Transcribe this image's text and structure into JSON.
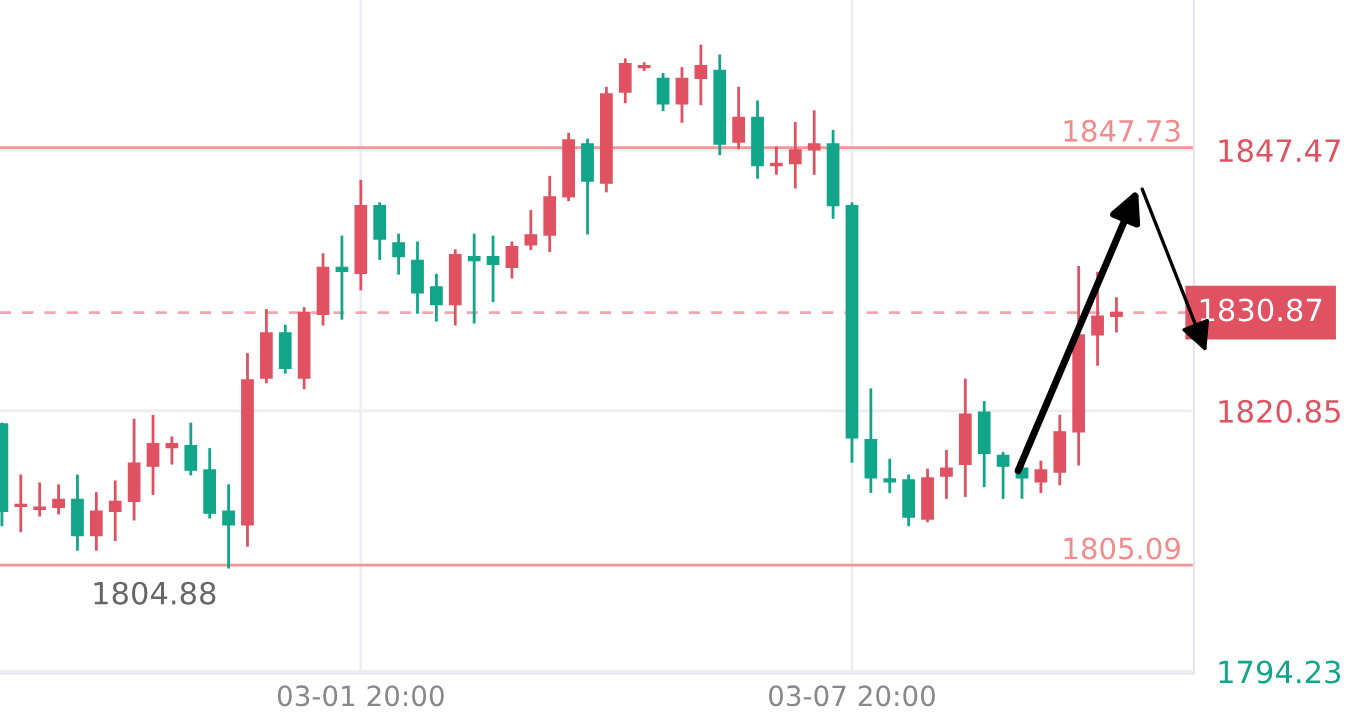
{
  "chart_data": {
    "type": "candlestick",
    "categories": [
      null,
      null,
      null,
      null,
      null,
      null,
      null,
      null,
      null,
      null,
      null,
      null,
      null,
      null,
      null,
      null,
      null,
      null,
      null,
      "03-01 20:00",
      null,
      null,
      null,
      null,
      null,
      null,
      null,
      null,
      null,
      null,
      null,
      null,
      null,
      null,
      null,
      null,
      null,
      null,
      null,
      null,
      null,
      null,
      null,
      null,
      null,
      "03-07 20:00",
      null,
      null,
      null,
      null,
      null,
      null,
      null,
      null,
      null,
      null,
      null,
      null,
      null,
      null
    ],
    "ohlc": [
      [
        1819.5,
        1819.5,
        1809.2,
        1810.6
      ],
      [
        1811.1,
        1814.2,
        1808.6,
        1811.3
      ],
      [
        1810.8,
        1813.4,
        1810.2,
        1811.0
      ],
      [
        1811.0,
        1813.2,
        1810.4,
        1811.8
      ],
      [
        1811.8,
        1814.2,
        1806.7,
        1808.1
      ],
      [
        1808.1,
        1812.4,
        1806.7,
        1810.6
      ],
      [
        1810.6,
        1813.6,
        1807.7,
        1811.6
      ],
      [
        1811.6,
        1819.9,
        1809.8,
        1815.5
      ],
      [
        1815.2,
        1820.3,
        1812.4,
        1817.5
      ],
      [
        1817.1,
        1818.1,
        1815.5,
        1817.5
      ],
      [
        1817.3,
        1819.5,
        1814.4,
        1814.8
      ],
      [
        1814.8,
        1816.9,
        1810.0,
        1810.4
      ],
      [
        1810.6,
        1813.2,
        1804.88,
        1809.2
      ],
      [
        1809.2,
        1826.6,
        1807.1,
        1824.0
      ],
      [
        1824.2,
        1831.1,
        1823.8,
        1828.8
      ],
      [
        1828.8,
        1829.5,
        1824.8,
        1825.2
      ],
      [
        1824.2,
        1831.3,
        1823.2,
        1830.9
      ],
      [
        1830.7,
        1836.8,
        1829.7,
        1835.5
      ],
      [
        1835.5,
        1838.6,
        1830.3,
        1835.1
      ],
      [
        1834.9,
        1844.3,
        1833.3,
        1841.8
      ],
      [
        1841.8,
        1842.0,
        1836.4,
        1838.4
      ],
      [
        1838.0,
        1838.8,
        1834.9,
        1836.6
      ],
      [
        1836.2,
        1838.0,
        1830.9,
        1832.9
      ],
      [
        1833.5,
        1834.7,
        1830.1,
        1831.7
      ],
      [
        1831.7,
        1837.2,
        1829.7,
        1836.8
      ],
      [
        1836.6,
        1838.8,
        1829.9,
        1836.2
      ],
      [
        1836.6,
        1838.6,
        1832.1,
        1835.8
      ],
      [
        1835.5,
        1838.0,
        1834.5,
        1837.6
      ],
      [
        1837.8,
        1841.2,
        1837.4,
        1838.8
      ],
      [
        1838.8,
        1844.7,
        1837.2,
        1842.7
      ],
      [
        1842.7,
        1849.1,
        1842.4,
        1848.5
      ],
      [
        1848.1,
        1848.5,
        1839.0,
        1844.3
      ],
      [
        1844.1,
        1853.8,
        1843.3,
        1853.2
      ],
      [
        1853.4,
        1856.7,
        1852.4,
        1856.3
      ],
      [
        1855.9,
        1856.3,
        1855.7,
        1856.1
      ],
      [
        1854.8,
        1855.2,
        1851.6,
        1852.2
      ],
      [
        1852.2,
        1855.8,
        1850.4,
        1854.8
      ],
      [
        1854.8,
        1858.1,
        1852.2,
        1856.1
      ],
      [
        1855.6,
        1857.1,
        1847.1,
        1848.1
      ],
      [
        1848.3,
        1853.8,
        1847.7,
        1850.8
      ],
      [
        1850.8,
        1852.4,
        1844.7,
        1845.9
      ],
      [
        1845.9,
        1847.7,
        1845.1,
        1846.1
      ],
      [
        1846.1,
        1850.2,
        1843.7,
        1847.5
      ],
      [
        1847.5,
        1851.4,
        1845.1,
        1848.1
      ],
      [
        1848.1,
        1849.4,
        1840.6,
        1841.8
      ],
      [
        1841.8,
        1842.0,
        1815.7,
        1818.1
      ],
      [
        1817.9,
        1823.0,
        1812.6,
        1814.0
      ],
      [
        1813.9,
        1815.8,
        1812.6,
        1813.6
      ],
      [
        1813.8,
        1814.2,
        1809.2,
        1810.0
      ],
      [
        1809.8,
        1814.8,
        1809.6,
        1814.0
      ],
      [
        1814.2,
        1816.7,
        1812.0,
        1815.0
      ],
      [
        1815.4,
        1824.0,
        1812.2,
        1820.5
      ],
      [
        1820.7,
        1821.7,
        1813.2,
        1816.5
      ],
      [
        1816.3,
        1816.5,
        1812.0,
        1815.2
      ],
      [
        1815.0,
        1815.4,
        1812.0,
        1814.0
      ],
      [
        1813.6,
        1815.6,
        1812.6,
        1814.8
      ],
      [
        1814.6,
        1820.3,
        1813.4,
        1818.7
      ],
      [
        1818.7,
        1835.5,
        1815.4,
        1828.6
      ],
      [
        1828.6,
        1834.9,
        1825.6,
        1830.5
      ],
      [
        1830.5,
        1832.3,
        1829.0,
        1830.87
      ]
    ],
    "colors": [
      "#11a58a",
      "#e05262",
      "#e05262",
      "#e05262",
      "#11a58a",
      "#e05262",
      "#e05262",
      "#e05262",
      "#e05262",
      "#e05262",
      "#11a58a",
      "#11a58a",
      "#11a58a",
      "#e05262",
      "#e05262",
      "#11a58a",
      "#e05262",
      "#e05262",
      "#11a58a",
      "#e05262",
      "#11a58a",
      "#11a58a",
      "#11a58a",
      "#11a58a",
      "#e05262",
      "#11a58a",
      "#11a58a",
      "#e05262",
      "#e05262",
      "#e05262",
      "#e05262",
      "#11a58a",
      "#e05262",
      "#e05262",
      "#e05262",
      "#11a58a",
      "#e05262",
      "#e05262",
      "#11a58a",
      "#e05262",
      "#11a58a",
      "#e05262",
      "#e05262",
      "#e05262",
      "#11a58a",
      "#11a58a",
      "#11a58a",
      "#11a58a",
      "#11a58a",
      "#e05262",
      "#e05262",
      "#e05262",
      "#11a58a",
      "#11a58a",
      "#11a58a",
      "#e05262",
      "#e05262",
      "#e05262",
      "#e05262",
      "#e05262"
    ],
    "ylim": [
      1794.0,
      1862.8
    ],
    "yticks": [
      1794.23,
      1820.85,
      1847.47
    ],
    "grid": true,
    "ref_lines": [
      {
        "axis": "y",
        "value": 1847.73,
        "label": "1847.73",
        "color": "#f28b8b",
        "line_style": "solid"
      },
      {
        "axis": "y",
        "value": 1805.09,
        "label": "1805.09",
        "color": "#f28b8b",
        "line_style": "solid"
      },
      {
        "axis": "y",
        "value": 1830.87,
        "label": "1830.87",
        "color": "#e05262",
        "line_style": "dashed"
      }
    ],
    "annotations": [
      {
        "text": "1804.88",
        "y": 1804.88
      }
    ]
  }
}
